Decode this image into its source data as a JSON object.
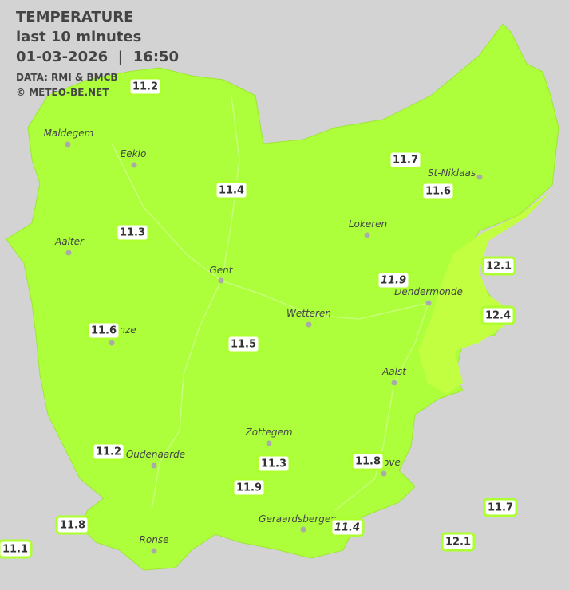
{
  "header": {
    "title": "TEMPERATURE",
    "subtitle": "last 10 minutes",
    "datetime": "01-03-2026  |  16:50",
    "source": "DATA: RMI & BMCB",
    "copyright": "© METEO-BE.NET"
  },
  "towns": [
    "Maldegem",
    "Eeklo",
    "Aalter",
    "Gent",
    "Lokeren",
    "St-Niklaas",
    "Dendermonde",
    "Wetteren",
    "Aalst",
    "Zottegem",
    "Oudenaarde",
    "Geraardsbergen",
    "Ronse",
    "Deinze",
    "Ninove"
  ],
  "stations": [
    11.2,
    11.7,
    11.6,
    11.4,
    11.3,
    12.1,
    11.9,
    12.4,
    11.6,
    11.5,
    11.2,
    11.8,
    11.3,
    11.9,
    11.7,
    11.8,
    11.4,
    12.1,
    11.1
  ]
}
